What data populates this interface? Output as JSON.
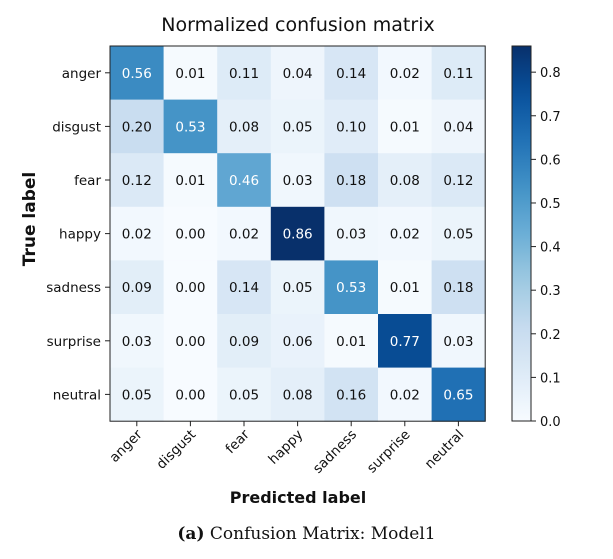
{
  "chart_data": {
    "type": "heatmap",
    "title": "Normalized confusion matrix",
    "xlabel": "Predicted label",
    "ylabel": "True label",
    "x_categories": [
      "anger",
      "disgust",
      "fear",
      "happy",
      "sadness",
      "surprise",
      "neutral"
    ],
    "y_categories": [
      "anger",
      "disgust",
      "fear",
      "happy",
      "sadness",
      "surprise",
      "neutral"
    ],
    "values": [
      [
        0.56,
        0.01,
        0.11,
        0.04,
        0.14,
        0.02,
        0.11
      ],
      [
        0.2,
        0.53,
        0.08,
        0.05,
        0.1,
        0.01,
        0.04
      ],
      [
        0.12,
        0.01,
        0.46,
        0.03,
        0.18,
        0.08,
        0.12
      ],
      [
        0.02,
        0.0,
        0.02,
        0.86,
        0.03,
        0.02,
        0.05
      ],
      [
        0.09,
        0.0,
        0.14,
        0.05,
        0.53,
        0.01,
        0.18
      ],
      [
        0.03,
        0.0,
        0.09,
        0.06,
        0.01,
        0.77,
        0.03
      ],
      [
        0.05,
        0.0,
        0.05,
        0.08,
        0.16,
        0.02,
        0.65
      ]
    ],
    "value_range": [
      0.0,
      0.86
    ],
    "colormap": "Blues",
    "colorbar_ticks": [
      "0.0",
      "0.1",
      "0.2",
      "0.3",
      "0.4",
      "0.5",
      "0.6",
      "0.7",
      "0.8"
    ],
    "colors": {
      "low": "#f7fbff",
      "high": "#08306b",
      "text_light": "#ffffff",
      "text_dark": "#111111"
    }
  },
  "caption": {
    "label": "(a)",
    "text": "Confusion Matrix: Model1"
  }
}
